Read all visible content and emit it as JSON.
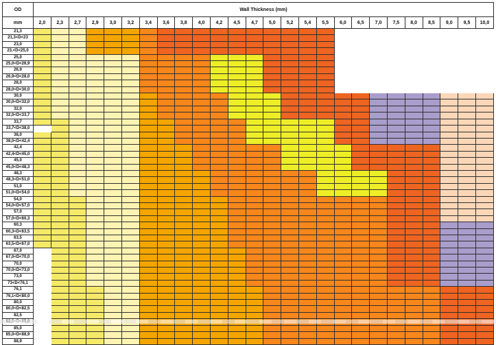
{
  "header": {
    "od_label": "OD",
    "unit_label": "mm",
    "wall_label": "Wall Thickness (mm)",
    "thicknesses": [
      "2,0",
      "2,3",
      "2,7",
      "2,9",
      "3,0",
      "3,2",
      "3,4",
      "3,6",
      "3,8",
      "4,0",
      "4,2",
      "4,5",
      "4,7",
      "5,0",
      "5,2",
      "5,4",
      "5,5",
      "6,0",
      "6,5",
      "7,0",
      "7,5",
      "8,0",
      "8,5",
      "9,0",
      "9,5",
      "10,0"
    ]
  },
  "colors": {
    "P": "#fdf3b3",
    "Y": "#f5e968",
    "O": "#f4a500",
    "A": "#f7861b",
    "R": "#ee6420",
    "L": "#eeee26",
    "V": "#a99dcc",
    "S": "#fbd7b8",
    "W": "#ffffff"
  },
  "rows": [
    {
      "od": "21,3",
      "cells": "YPPOOOARRRRRRRRRRWWWWWWWWW"
    },
    {
      "od": "21,3<D<23",
      "cells": "YPPOOOARRRRRRRRRRWWWWWWWWW"
    },
    {
      "od": "23,0",
      "cells": "YPPOOOARRRRRRRRRRWWWWWWWWW"
    },
    {
      "od": "23,<D<25,0",
      "cells": "YPPOOOARRRRRRRRRRWWWWWWWWW"
    },
    {
      "od": "25,0",
      "cells": "YPPPPPAAAALLLRRRRWWWWWWWWW"
    },
    {
      "od": "25,0<D<26,9",
      "cells": "YPPPPPAAAALLLRRRRWWWWWWWWW"
    },
    {
      "od": "26,9",
      "cells": "YPPPPPAAAALLLRRRRWWWWWWWWW"
    },
    {
      "od": "26,9<D<28,0",
      "cells": "YPPPPPAAAALLLRRRRWWWWWWWWW"
    },
    {
      "od": "28,0",
      "cells": "YPPPPPAAAALLLRRRRWWWWWWWWW"
    },
    {
      "od": "28,0<D<30,0",
      "cells": "YPPPPPAAAALLLRRRRWWWWWWWWW"
    },
    {
      "od": "30,0",
      "cells": "YPPPPPOAAAALLLRRRRRVVVVSSS"
    },
    {
      "od": "30,0<D<32,0",
      "cells": "YPPPPPOAAAALLLRRRRRVVVVSSS"
    },
    {
      "od": "32,0",
      "cells": "YPPPPPOAAAALLLRRRRRVVVVSSS"
    },
    {
      "od": "32,0<D<33,7",
      "cells": "YPPPPPOAAAALLLRRRRRVVVVSSS"
    },
    {
      "od": "33,7",
      "cells": "YYPPPPOOAAAALLLLLRRVVVVSSS"
    },
    {
      "od": "33,7<D<38,0",
      "cells": "WYPPPPOOAAAALLLLLRRVVVVSSS"
    },
    {
      "od": "38,0",
      "cells": "YYPPPPOOAAAALLLLLRRVVVVSSS"
    },
    {
      "od": "38,0<D<42,4",
      "cells": "YYPPPPOOAAAALLLLLRRVVVVSSS"
    },
    {
      "od": "42,4",
      "cells": "YYPPPPOOOAAAAALLLLRRRRRSSS"
    },
    {
      "od": "42,4<D<45,0",
      "cells": "YYPPPPOOOAAAAALLLLRRRRRSSS"
    },
    {
      "od": "45,0",
      "cells": "YYPPPPOOOAAAAALLLLRRRRRSSS"
    },
    {
      "od": "45,0<D<48,3",
      "cells": "YYPPPPOOOAAAAALLLLRRRRRSSS"
    },
    {
      "od": "48,3",
      "cells": "YYPPPPOOOOAAAAAALLLLRRRSSS"
    },
    {
      "od": "48,3<D<51,0",
      "cells": "YYPPPPOOOOAAAAAALLLLRRRSSS"
    },
    {
      "od": "51,0",
      "cells": "YYPPPPOOOOAAAAAALLLLRRRSSS"
    },
    {
      "od": "51,0<D<54,0",
      "cells": "YYPPPPOOOOAAAAAALLLLRRRSSS"
    },
    {
      "od": "54,0",
      "cells": "YYYPPPOOOOOAAAAAAAAARRRSSS"
    },
    {
      "od": "54,0<D<57,0",
      "cells": "YYYPPPOOOOOAAAAAAAAARRRSSS"
    },
    {
      "od": "57,0",
      "cells": "YYYPPPOOOOOAAAAAAAAARRRSSS"
    },
    {
      "od": "57,0<D<60,3",
      "cells": "YYYPPPOOOOOAAAAAAAAARRRSSS"
    },
    {
      "od": "60,3",
      "cells": "YYYPPPOOOOOAAAAAAAAARRRVVV"
    },
    {
      "od": "60,3<D<63,5",
      "cells": "YYYPPPOOOOOAAAAAAAAARRRVVV"
    },
    {
      "od": "63,5",
      "cells": "YYYPPPOOOOOAAAAAAAAARRRVVV"
    },
    {
      "od": "63,5<D<67,0",
      "cells": "YYYPPPOOOOOAAAAAAAAARRRVVV"
    },
    {
      "od": "67,0",
      "cells": "WYYPPPOOOOOOAAAAAAAARRRVVV"
    },
    {
      "od": "67,0<D<70,0",
      "cells": "WYYPPPOOOOOOAAAAAAAARRRVVV"
    },
    {
      "od": "70,0",
      "cells": "WYYPPPOOOOOOAAAAAAAARRRVVV"
    },
    {
      "od": "70,0<D<73,0",
      "cells": "WYYPPPOOOOOOAAAAAAAARRRVVV"
    },
    {
      "od": "73,0",
      "cells": "WYYPPPOOOOOOAAAAAAAARRRVVV"
    },
    {
      "od": "73<D<76,1",
      "cells": "WYYPPPOOOOOOAAAAAAAARRRVVV"
    },
    {
      "od": "76,1",
      "cells": "WYYYPPOOOOOOOAAAAAAAAAARRR"
    },
    {
      "od": "76,1<D<80,0",
      "cells": "WYYYPPOOOOOOOAAAAAAAAAARRR"
    },
    {
      "od": "80,0",
      "cells": "WYYYPPOOOOOOOAAAAAAAAAARRR"
    },
    {
      "od": "80,0<D<82,5",
      "cells": "WYYYPPOOOOOOOAAAAAAAAAARRR"
    },
    {
      "od": "82,5",
      "cells": "WYYYPPOOOOOOOAAAAAAAAAARRR"
    },
    {
      "od": "82,5<D<85,0",
      "cells": "WYYYPPOOOOOOOAAAAAAAAAARRR"
    },
    {
      "od": "85,0",
      "cells": "WYYYPPOOOOOOOAAAAAAAAAARRR"
    },
    {
      "od": "85,0<D<88,9",
      "cells": "WYYYPPOOOOOOOAAAAAAAAAARRR"
    },
    {
      "od": "88,9",
      "cells": "WYYYPPOOOOOOOAAAAAAAAAARRR"
    }
  ]
}
